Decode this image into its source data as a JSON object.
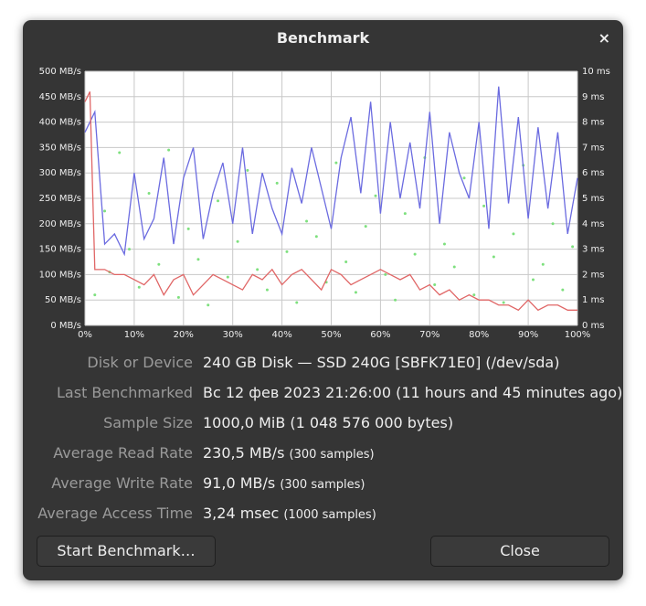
{
  "dialog": {
    "title": "Benchmark",
    "close_icon": "×"
  },
  "chart_data": {
    "type": "line",
    "xlim": [
      0,
      100
    ],
    "xticks": [
      {
        "value": 0,
        "label": "0%"
      },
      {
        "value": 10,
        "label": "10%"
      },
      {
        "value": 20,
        "label": "20%"
      },
      {
        "value": 30,
        "label": "30%"
      },
      {
        "value": 40,
        "label": "40%"
      },
      {
        "value": 50,
        "label": "50%"
      },
      {
        "value": 60,
        "label": "60%"
      },
      {
        "value": 70,
        "label": "70%"
      },
      {
        "value": 80,
        "label": "80%"
      },
      {
        "value": 90,
        "label": "90%"
      },
      {
        "value": 100,
        "label": "100%"
      }
    ],
    "ylim": [
      0,
      500
    ],
    "yticks": [
      {
        "value": 0,
        "label": "0 MB/s"
      },
      {
        "value": 50,
        "label": "50 MB/s"
      },
      {
        "value": 100,
        "label": "100 MB/s"
      },
      {
        "value": 150,
        "label": "150 MB/s"
      },
      {
        "value": 200,
        "label": "200 MB/s"
      },
      {
        "value": 250,
        "label": "250 MB/s"
      },
      {
        "value": 300,
        "label": "300 MB/s"
      },
      {
        "value": 350,
        "label": "350 MB/s"
      },
      {
        "value": 400,
        "label": "400 MB/s"
      },
      {
        "value": 450,
        "label": "450 MB/s"
      },
      {
        "value": 500,
        "label": "500 MB/s"
      }
    ],
    "y2lim": [
      0,
      10
    ],
    "y2ticks": [
      {
        "value": 0,
        "label": "0 ms"
      },
      {
        "value": 1,
        "label": "1 ms"
      },
      {
        "value": 2,
        "label": "2 ms"
      },
      {
        "value": 3,
        "label": "3 ms"
      },
      {
        "value": 4,
        "label": "4 ms"
      },
      {
        "value": 5,
        "label": "5 ms"
      },
      {
        "value": 6,
        "label": "6 ms"
      },
      {
        "value": 7,
        "label": "7 ms"
      },
      {
        "value": 8,
        "label": "8 ms"
      },
      {
        "value": 9,
        "label": "9 ms"
      },
      {
        "value": 10,
        "label": "10 ms"
      }
    ],
    "grid": true,
    "series": [
      {
        "color": "#6b6be0",
        "mode": "line",
        "x": [
          0,
          2,
          4,
          6,
          8,
          10,
          12,
          14,
          16,
          18,
          20,
          22,
          24,
          26,
          28,
          30,
          32,
          34,
          36,
          38,
          40,
          42,
          44,
          46,
          48,
          50,
          52,
          54,
          56,
          58,
          60,
          62,
          64,
          66,
          68,
          70,
          72,
          74,
          76,
          78,
          80,
          82,
          84,
          86,
          88,
          90,
          92,
          94,
          96,
          98,
          100
        ],
        "values": [
          380,
          420,
          160,
          180,
          140,
          300,
          170,
          210,
          330,
          160,
          290,
          350,
          170,
          260,
          320,
          200,
          350,
          180,
          300,
          230,
          180,
          310,
          240,
          350,
          270,
          190,
          330,
          410,
          260,
          440,
          220,
          400,
          250,
          360,
          230,
          420,
          200,
          380,
          300,
          250,
          400,
          190,
          470,
          240,
          410,
          210,
          390,
          230,
          380,
          180,
          290
        ]
      },
      {
        "color": "#e06666",
        "mode": "line",
        "x": [
          0,
          1,
          2,
          4,
          6,
          8,
          10,
          12,
          14,
          16,
          18,
          20,
          22,
          24,
          26,
          28,
          30,
          32,
          34,
          36,
          38,
          40,
          42,
          44,
          46,
          48,
          50,
          52,
          54,
          56,
          58,
          60,
          62,
          64,
          66,
          68,
          70,
          72,
          74,
          76,
          78,
          80,
          82,
          84,
          86,
          88,
          90,
          92,
          94,
          96,
          98,
          100
        ],
        "values": [
          440,
          460,
          110,
          110,
          100,
          100,
          90,
          80,
          100,
          60,
          90,
          100,
          60,
          80,
          100,
          90,
          80,
          70,
          100,
          90,
          110,
          80,
          100,
          110,
          90,
          70,
          110,
          100,
          80,
          90,
          100,
          110,
          100,
          90,
          100,
          70,
          80,
          60,
          70,
          50,
          60,
          50,
          50,
          40,
          40,
          30,
          50,
          30,
          40,
          40,
          30,
          30
        ]
      },
      {
        "color": "#7ee07e",
        "mode": "markers",
        "axis": "y2",
        "x": [
          2,
          4,
          5,
          7,
          9,
          11,
          13,
          15,
          17,
          19,
          21,
          23,
          25,
          27,
          29,
          31,
          33,
          35,
          37,
          39,
          41,
          43,
          45,
          47,
          49,
          51,
          53,
          55,
          57,
          59,
          61,
          63,
          65,
          67,
          69,
          71,
          73,
          75,
          77,
          79,
          81,
          83,
          85,
          87,
          89,
          91,
          93,
          95,
          97,
          99
        ],
        "values": [
          1.2,
          4.5,
          2.1,
          6.8,
          3.0,
          1.5,
          5.2,
          2.4,
          6.9,
          1.1,
          3.8,
          2.6,
          0.8,
          4.9,
          1.9,
          3.3,
          6.1,
          2.2,
          1.4,
          5.6,
          2.9,
          0.9,
          4.1,
          3.5,
          1.7,
          6.4,
          2.5,
          1.3,
          3.9,
          5.1,
          2.0,
          1.0,
          4.4,
          2.8,
          6.6,
          1.6,
          3.2,
          2.3,
          5.8,
          1.2,
          4.7,
          2.7,
          0.9,
          3.6,
          6.3,
          1.8,
          2.4,
          4.0,
          1.4,
          3.1
        ]
      }
    ]
  },
  "info": [
    {
      "label": "Disk or Device",
      "value": "240 GB Disk — SSD 240G [SBFK71E0] (/dev/sda)"
    },
    {
      "label": "Last Benchmarked",
      "value": "Вс 12 фев 2023 21:26:00 (11 hours and 45 minutes ago)"
    },
    {
      "label": "Sample Size",
      "value": "1000,0 MiB (1 048 576 000 bytes)"
    },
    {
      "label": "Average Read Rate",
      "value": "230,5 MB/s",
      "note": "(300 samples)"
    },
    {
      "label": "Average Write Rate",
      "value": "91,0 MB/s",
      "note": "(300 samples)"
    },
    {
      "label": "Average Access Time",
      "value": "3,24 msec",
      "note": "(1000 samples)"
    }
  ],
  "buttons": {
    "start": "Start Benchmark…",
    "close": "Close"
  }
}
